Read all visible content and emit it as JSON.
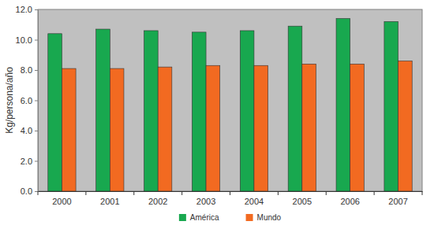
{
  "chart_data": {
    "type": "bar",
    "y_label": "Kg/persona/año",
    "categories": [
      "2000",
      "2001",
      "2002",
      "2003",
      "2004",
      "2005",
      "2006",
      "2007"
    ],
    "series": [
      {
        "name": "América",
        "color": "#18a84f",
        "values": [
          10.4,
          10.7,
          10.6,
          10.5,
          10.6,
          10.9,
          11.4,
          11.2
        ]
      },
      {
        "name": "Mundo",
        "color": "#f26a21",
        "values": [
          8.1,
          8.1,
          8.2,
          8.3,
          8.3,
          8.4,
          8.4,
          8.6
        ]
      }
    ],
    "ylim": [
      0,
      12
    ],
    "yticks": [
      {
        "value": 0,
        "label": "0.0"
      },
      {
        "value": 2,
        "label": "2.0"
      },
      {
        "value": 4,
        "label": "4.0"
      },
      {
        "value": 6,
        "label": "6.0"
      },
      {
        "value": 8,
        "label": "8.0"
      },
      {
        "value": 10,
        "label": "10.0"
      },
      {
        "value": 12,
        "label": "12.0"
      }
    ],
    "grid": false,
    "legend": "bottom"
  }
}
